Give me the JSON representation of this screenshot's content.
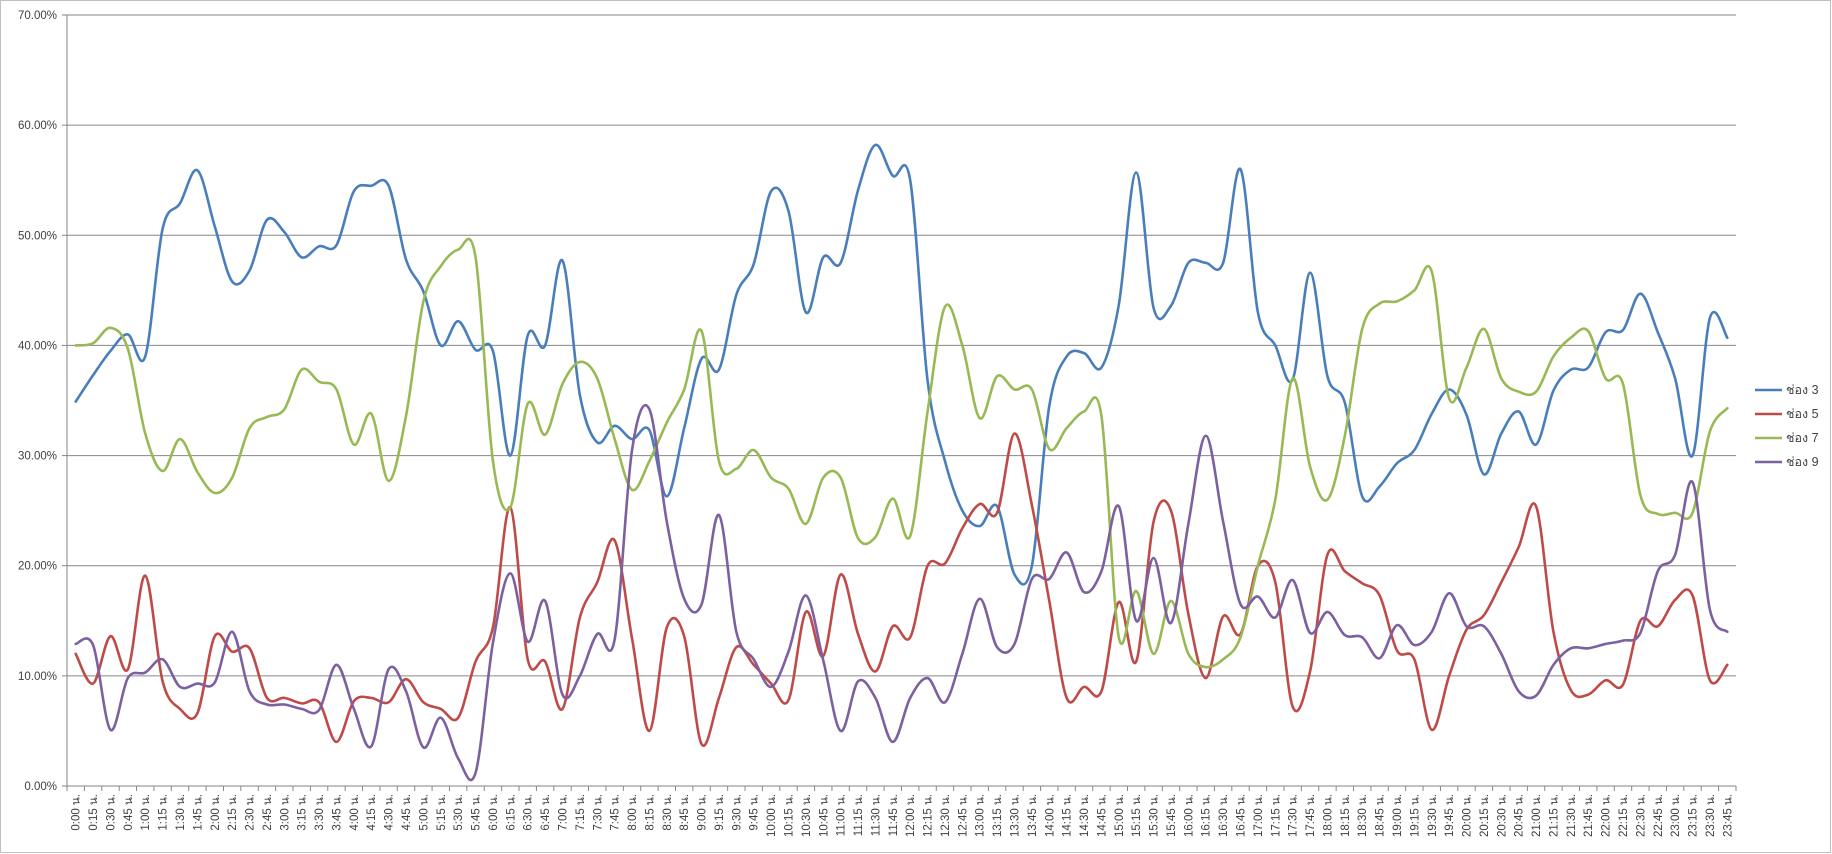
{
  "chart_data": {
    "type": "line",
    "smooth": true,
    "title": "",
    "xlabel": "",
    "ylabel": "",
    "ylim": [
      0,
      70
    ],
    "y_format": "percent_2dp",
    "y_ticks": [
      0,
      10,
      20,
      30,
      40,
      50,
      60,
      70
    ],
    "y_tick_labels": [
      "0.00%",
      "10.00%",
      "20.00%",
      "30.00%",
      "40.00%",
      "50.00%",
      "60.00%",
      "70.00%"
    ],
    "grid": "horizontal",
    "legend_position": "right",
    "categories": [
      "0:00 น.",
      "0:15 น.",
      "0:30 น.",
      "0:45 น.",
      "1:00 น.",
      "1:15 น.",
      "1:30 น.",
      "1:45 น.",
      "2:00 น.",
      "2:15 น.",
      "2:30 น.",
      "2:45 น.",
      "3:00 น.",
      "3:15 น.",
      "3:30 น.",
      "3:45 น.",
      "4:00 น.",
      "4:15 น.",
      "4:30 น.",
      "4:45 น.",
      "5:00 น.",
      "5:15 น.",
      "5:30 น.",
      "5:45 น.",
      "6:00 น.",
      "6:15 น.",
      "6:30 น.",
      "6:45 น.",
      "7:00 น.",
      "7:15 น.",
      "7:30 น.",
      "7:45 น.",
      "8:00 น.",
      "8:15 น.",
      "8:30 น.",
      "8:45 น.",
      "9:00 น.",
      "9:15 น.",
      "9:30 น.",
      "9:45 น.",
      "10:00 น.",
      "10:15 น.",
      "10:30 น.",
      "10:45 น.",
      "11:00 น.",
      "11:15 น.",
      "11:30 น.",
      "11:45 น.",
      "12:00 น.",
      "12:15 น.",
      "12:30 น.",
      "12:45 น.",
      "13:00 น.",
      "13:15 น.",
      "13:30 น.",
      "13:45 น.",
      "14:00 น.",
      "14:15 น.",
      "14:30 น.",
      "14:45 น.",
      "15:00 น.",
      "15:15 น.",
      "15:30 น.",
      "15:45 น.",
      "16:00 น.",
      "16:15 น.",
      "16:30 น.",
      "16:45 น.",
      "17:00 น.",
      "17:15 น.",
      "17:30 น.",
      "17:45 น.",
      "18:00 น.",
      "18:15 น.",
      "18:30 น.",
      "18:45 น.",
      "19:00 น.",
      "19:15 น.",
      "19:30 น.",
      "19:45 น.",
      "20:00 น.",
      "20:15 น.",
      "20:30 น.",
      "20:45 น.",
      "21:00 น.",
      "21:15 น.",
      "21:30 น.",
      "21:45 น.",
      "22:00 น.",
      "22:15 น.",
      "22:30 น.",
      "22:45 น.",
      "23:00 น.",
      "23:15 น.",
      "23:30 น.",
      "23:45 น."
    ],
    "series": [
      {
        "name": "ช่อง 3",
        "color": "#4a7ebb",
        "values": [
          34.9,
          37.3,
          39.5,
          41.0,
          39.0,
          50.6,
          52.9,
          55.9,
          50.8,
          45.8,
          46.8,
          51.4,
          50.3,
          48.0,
          49.0,
          49.1,
          54.0,
          54.5,
          54.5,
          47.8,
          44.9,
          40.0,
          42.2,
          39.6,
          39.5,
          30.0,
          40.9,
          40.0,
          47.7,
          35.5,
          31.2,
          32.7,
          31.5,
          32.3,
          26.3,
          32.5,
          38.8,
          37.8,
          44.6,
          47.4,
          54.0,
          52.2,
          43.0,
          48.0,
          47.5,
          54.1,
          58.2,
          55.4,
          55.0,
          36.8,
          29.5,
          25.0,
          23.6,
          25.4,
          19.2,
          20.0,
          34.5,
          39.0,
          39.3,
          38.0,
          43.7,
          55.7,
          43.4,
          43.6,
          47.5,
          47.5,
          47.5,
          56.0,
          43.0,
          40.0,
          36.9,
          46.6,
          37.2,
          34.8,
          26.3,
          27.2,
          29.3,
          30.5,
          33.8,
          36.0,
          33.7,
          28.3,
          32.0,
          34.0,
          31.0,
          35.9,
          37.8,
          38.0,
          41.2,
          41.4,
          44.7,
          41.2,
          37.0,
          30.0,
          42.5,
          40.7
        ]
      },
      {
        "name": "ช่อง 5",
        "color": "#be4b48",
        "values": [
          12.0,
          9.3,
          13.6,
          10.6,
          19.1,
          9.5,
          7.0,
          6.6,
          13.6,
          12.2,
          12.5,
          8.0,
          8.0,
          7.5,
          7.6,
          4.0,
          7.7,
          8.0,
          7.6,
          9.7,
          7.6,
          7.0,
          6.2,
          11.3,
          14.4,
          25.3,
          11.5,
          11.3,
          7.0,
          15.3,
          18.5,
          22.3,
          13.4,
          5.0,
          14.4,
          13.6,
          3.8,
          8.0,
          12.6,
          11.0,
          9.3,
          7.8,
          15.8,
          11.8,
          19.2,
          13.8,
          10.4,
          14.5,
          13.5,
          20.0,
          20.2,
          23.4,
          25.6,
          24.8,
          32.0,
          25.5,
          16.8,
          8.0,
          9.0,
          8.6,
          16.7,
          11.3,
          24.0,
          25.0,
          15.6,
          9.8,
          15.4,
          13.8,
          20.0,
          18.5,
          7.2,
          10.4,
          21.0,
          19.5,
          18.4,
          17.3,
          12.3,
          11.5,
          5.1,
          10.0,
          14.2,
          15.5,
          18.5,
          21.7,
          25.4,
          14.0,
          8.7,
          8.3,
          9.6,
          9.2,
          15.0,
          14.5,
          16.9,
          17.3,
          9.6,
          11.0
        ]
      },
      {
        "name": "ช่อง 7",
        "color": "#98b954",
        "values": [
          40.0,
          40.2,
          41.6,
          39.7,
          32.0,
          28.6,
          31.5,
          28.5,
          26.6,
          28.0,
          32.5,
          33.5,
          34.2,
          37.8,
          36.7,
          36.0,
          31.0,
          33.8,
          27.7,
          33.6,
          44.0,
          47.2,
          48.7,
          48.0,
          29.5,
          25.3,
          34.7,
          31.9,
          36.5,
          38.5,
          37.0,
          31.5,
          26.9,
          29.5,
          33.0,
          36.0,
          41.3,
          29.5,
          28.8,
          30.5,
          28.0,
          27.0,
          23.8,
          28.0,
          28.0,
          22.5,
          22.6,
          26.1,
          22.7,
          34.0,
          43.5,
          40.0,
          33.4,
          37.2,
          36.0,
          36.0,
          30.6,
          32.5,
          34.0,
          33.6,
          13.5,
          17.7,
          12.0,
          16.8,
          12.0,
          10.8,
          11.5,
          13.5,
          20.0,
          26.0,
          37.0,
          29.0,
          26.0,
          31.8,
          41.5,
          43.8,
          44.0,
          45.0,
          46.7,
          35.2,
          38.0,
          41.5,
          37.0,
          35.8,
          35.8,
          39.0,
          40.7,
          41.3,
          37.0,
          36.5,
          26.4,
          24.7,
          24.8,
          24.8,
          32.2,
          34.3
        ]
      },
      {
        "name": "ช่อง 9",
        "color": "#7d60a0",
        "values": [
          12.9,
          12.8,
          5.1,
          9.8,
          10.3,
          11.5,
          9.0,
          9.3,
          9.4,
          14.0,
          8.6,
          7.4,
          7.4,
          7.0,
          6.9,
          11.0,
          7.0,
          3.6,
          10.6,
          8.6,
          3.5,
          6.2,
          2.5,
          1.2,
          13.0,
          19.3,
          13.1,
          16.8,
          8.3,
          10.0,
          13.8,
          13.3,
          30.5,
          34.2,
          24.0,
          17.0,
          16.5,
          24.6,
          14.0,
          11.5,
          9.0,
          12.2,
          17.3,
          11.4,
          5.0,
          9.5,
          8.0,
          4.0,
          8.0,
          9.8,
          7.6,
          12.0,
          17.0,
          12.6,
          12.9,
          18.8,
          18.8,
          21.2,
          17.6,
          19.5,
          25.4,
          15.0,
          20.7,
          14.8,
          23.8,
          31.8,
          24.0,
          16.5,
          17.2,
          15.3,
          18.7,
          13.9,
          15.8,
          13.7,
          13.5,
          11.6,
          14.6,
          12.8,
          14.0,
          17.5,
          14.5,
          14.5,
          12.0,
          8.6,
          8.2,
          11.0,
          12.5,
          12.5,
          12.9,
          13.2,
          13.9,
          19.5,
          21.0,
          27.6,
          16.0,
          14.0
        ]
      }
    ]
  }
}
